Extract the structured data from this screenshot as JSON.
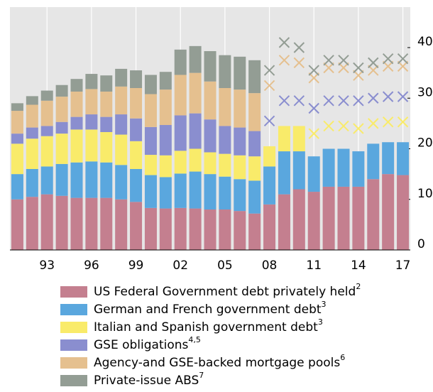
{
  "chart_data": {
    "type": "stacked_bar",
    "categories": [
      null,
      null,
      "93",
      null,
      null,
      "96",
      null,
      null,
      "99",
      null,
      null,
      "02",
      null,
      null,
      "05",
      null,
      null,
      "08",
      null,
      null,
      "11",
      null,
      null,
      "14",
      null,
      null,
      "17"
    ],
    "ylim": [
      0,
      48
    ],
    "yticks": [
      0,
      10,
      20,
      30,
      40
    ],
    "background": "#e6e6e6",
    "grid": true,
    "series": [
      {
        "name": "US Federal Government debt privately held",
        "footnote": "2",
        "color": "#c47f8f",
        "crossed_from": null,
        "values": [
          10,
          10.5,
          11,
          10.7,
          10.3,
          10.3,
          10.3,
          10,
          9.5,
          8.3,
          8.2,
          8.3,
          8.2,
          8,
          8,
          7.7,
          7.2,
          9,
          11,
          12,
          11.5,
          12.5,
          12.5,
          12.5,
          14,
          15,
          14.8
        ]
      },
      {
        "name": "German and French government debt",
        "footnote": "3",
        "color": "#5aa7de",
        "crossed_from": null,
        "values": [
          5,
          5.5,
          5.5,
          6.3,
          7,
          7.2,
          7,
          6.8,
          6.5,
          6.5,
          6.2,
          6.8,
          7.3,
          7,
          6.5,
          6.3,
          6.5,
          7.5,
          8.5,
          7.5,
          7,
          7.5,
          7.5,
          7,
          7,
          6.3,
          6.5
        ]
      },
      {
        "name": "Italian and Spanish government debt",
        "footnote": "3",
        "color": "#f9eb6a",
        "crossed_from": 20,
        "values": [
          6,
          6,
          6,
          6,
          6.5,
          6.3,
          6,
          6,
          5.5,
          4,
          4.3,
          4.5,
          4.5,
          4.3,
          4.5,
          4.7,
          4.8,
          4,
          5,
          5,
          4.5,
          4.5,
          4.5,
          4.5,
          4,
          4,
          4
        ]
      },
      {
        "name": "GSE obligations",
        "footnote": "4,5",
        "color": "#8a8ecf",
        "crossed_from": 17,
        "values": [
          2,
          2.2,
          2,
          2.3,
          2.5,
          3,
          3,
          4,
          4.5,
          5.5,
          6,
          7,
          7,
          6.5,
          5.5,
          5.5,
          5,
          5,
          5,
          5,
          5,
          5,
          5,
          5.5,
          5,
          5,
          5
        ]
      },
      {
        "name": "Agency-and GSE-backed mortgage pools",
        "footnote": "6",
        "color": "#e5c08f",
        "crossed_from": 17,
        "values": [
          4.5,
          4.5,
          5,
          5,
          5,
          5,
          5,
          5.5,
          6,
          6.5,
          7,
          8,
          8,
          7.5,
          7.5,
          7.5,
          7.5,
          7,
          8,
          7.5,
          6,
          6.5,
          6.5,
          5,
          5.5,
          6,
          6
        ]
      },
      {
        "name": "Private-issue ABS",
        "footnote": "7",
        "color": "#939d94",
        "crossed_from": 17,
        "values": [
          1.5,
          1.7,
          2,
          2.3,
          2.5,
          3,
          3.2,
          3.5,
          3.5,
          3.8,
          3.5,
          5,
          5.3,
          6,
          6.5,
          6.5,
          6.5,
          3,
          3.5,
          3,
          1.5,
          1.5,
          1.5,
          1.5,
          1.5,
          1.5,
          1.5
        ]
      }
    ]
  }
}
